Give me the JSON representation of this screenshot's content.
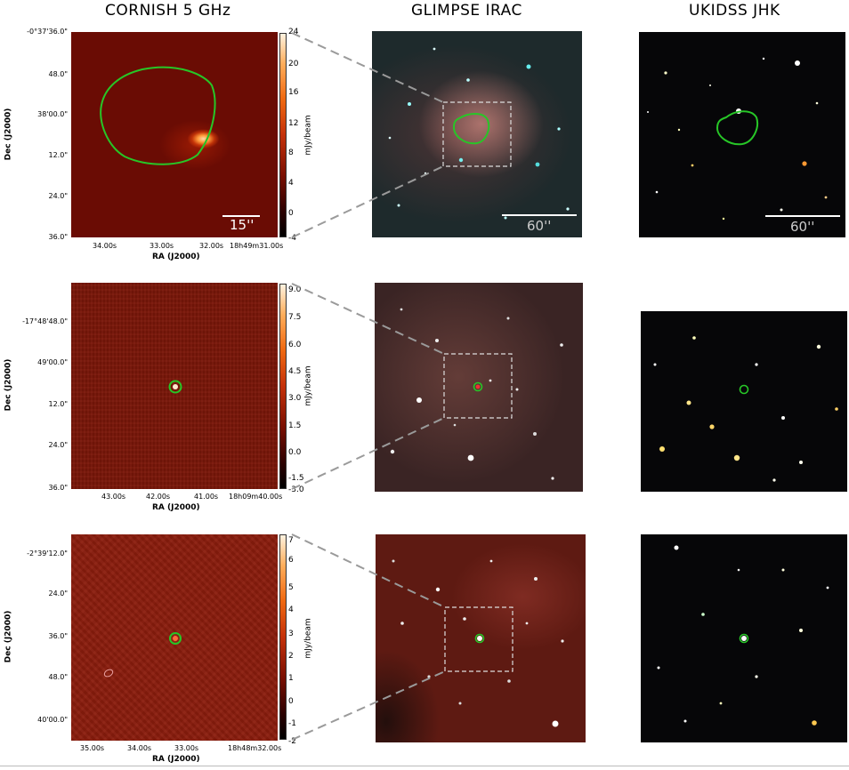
{
  "columns": {
    "cornish": "CORNISH 5 GHz",
    "glimpse": "GLIMPSE IRAC",
    "ukidss": "UKIDSS JHK"
  },
  "rows": [
    {
      "yticks": [
        "-0°37'36.0\"",
        "48.0\"",
        "38'00.0\"",
        "12.0\"",
        "24.0\"",
        "36.0\""
      ],
      "xticks": [
        "34.00s",
        "33.00s",
        "32.00s",
        "18h49m31.00s"
      ],
      "xlabel": "RA (J2000)",
      "ylabel": "Dec (J2000)",
      "cbar_ticks": [
        "24",
        "20",
        "16",
        "12",
        "8",
        "4",
        "0",
        "-4"
      ],
      "cbar_label": "mJy/beam",
      "cornish_scale": "15''",
      "glimpse_scale": "60''",
      "ukidss_scale": "60''"
    },
    {
      "yticks": [
        "-17°48'48.0\"",
        "49'00.0\"",
        "12.0\"",
        "24.0\"",
        "36.0\""
      ],
      "xticks": [
        "43.00s",
        "42.00s",
        "41.00s",
        "18h09m40.00s"
      ],
      "xlabel": "RA (J2000)",
      "ylabel": "Dec (J2000)",
      "cbar_ticks": [
        "9.0",
        "7.5",
        "6.0",
        "4.5",
        "3.0",
        "1.5",
        "0.0",
        "-1.5",
        "-3.0"
      ],
      "cbar_label": "mJy/beam"
    },
    {
      "yticks": [
        "-2°39'12.0\"",
        "24.0\"",
        "36.0\"",
        "48.0\"",
        "40'00.0\""
      ],
      "xticks": [
        "35.00s",
        "34.00s",
        "33.00s",
        "18h48m32.00s"
      ],
      "xlabel": "RA (J2000)",
      "ylabel": "Dec (J2000)",
      "cbar_ticks": [
        "7",
        "6",
        "5",
        "4",
        "3",
        "2",
        "1",
        "0",
        "-1",
        "-2"
      ],
      "cbar_label": "mJy/beam"
    }
  ],
  "colors": {
    "contour": "#27c627",
    "connector": "#9a9a9a",
    "zoom_box": "#dddddd"
  }
}
